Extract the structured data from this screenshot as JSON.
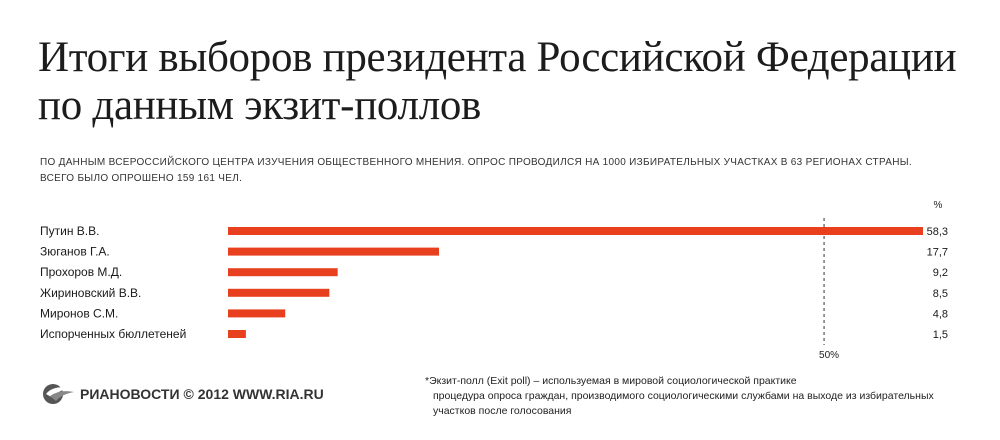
{
  "title": "Итоги выборов президента Российской Федерации по данным экзит-поллов",
  "subtitle": "По данным Всероссийского центра изучения общественного мнения. Опрос проводился на 1000 избирательных участках в 63 регионах страны. Всего было опрошено 159 161 чел.",
  "chart_data": {
    "type": "bar",
    "orientation": "horizontal",
    "categories": [
      "Путин В.В.",
      "Зюганов Г.А.",
      "Прохоров М.Д.",
      "Жириновский В.В.",
      "Миронов С.М.",
      "Испорченных бюллетеней"
    ],
    "values": [
      58.3,
      17.7,
      9.2,
      8.5,
      4.8,
      1.5
    ],
    "value_labels": [
      "58,3",
      "17,7",
      "9,2",
      "8,5",
      "4,8",
      "1,5"
    ],
    "unit_label": "%",
    "reference_line": {
      "value": 50,
      "label": "50%"
    },
    "xlim": [
      0,
      58.3
    ],
    "bar_color": "#e8401f",
    "grid": false,
    "legend": "none"
  },
  "footnote": {
    "line1": "*Экзит-полл (Exit poll) – используемая в мировой социологической практике",
    "line2": "процедура опроса граждан, производимого социологическими службами на выходе из избирательных участков после голосования"
  },
  "brand": {
    "logo_text": "РИАНОВОСТИ",
    "copyright": "© 2012 WWW.RIA.RU",
    "logo_color": "#555555"
  }
}
